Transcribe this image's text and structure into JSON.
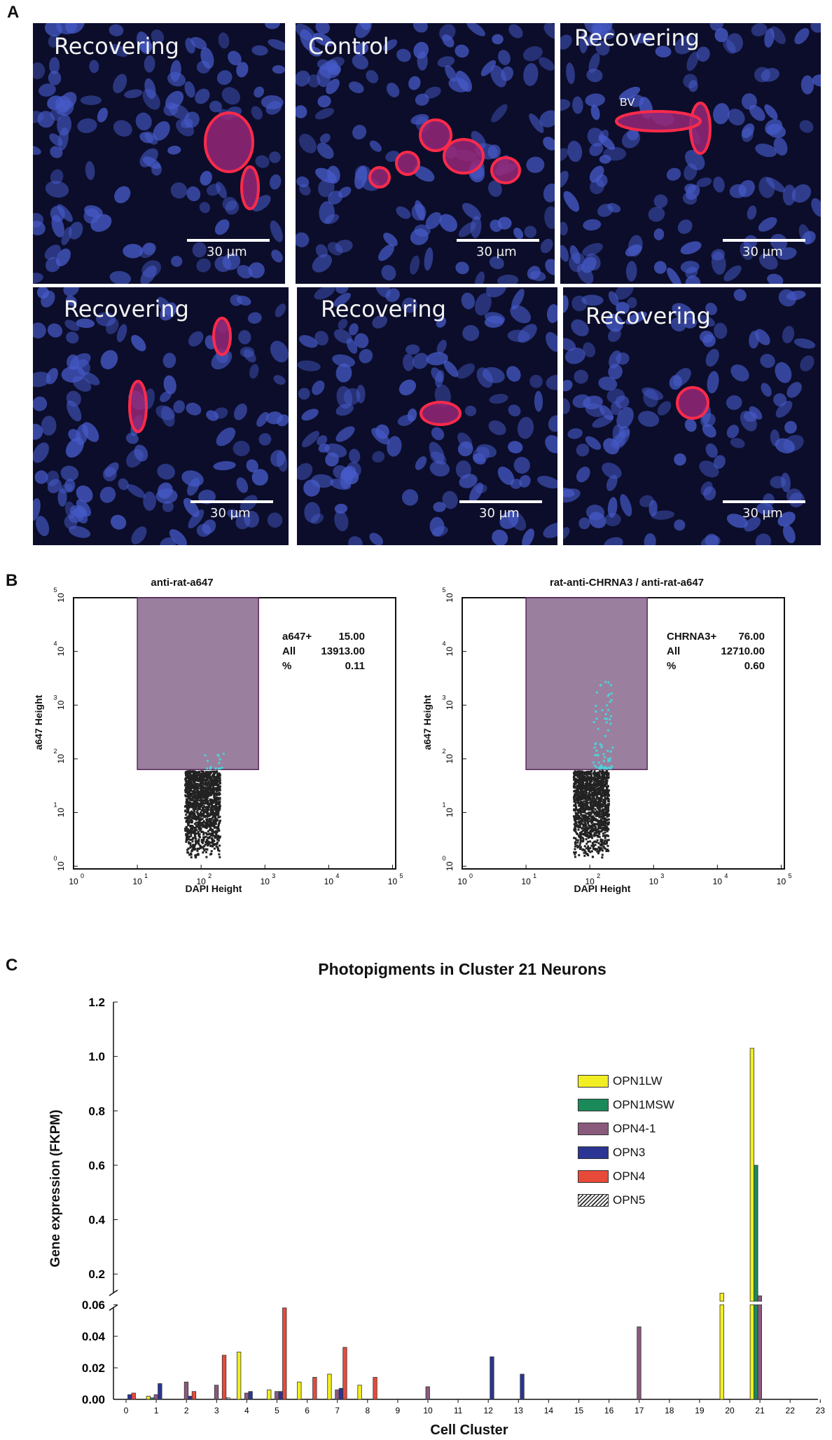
{
  "panels": {
    "a_label": "A",
    "b_label": "B",
    "c_label": "C"
  },
  "micrographs": [
    {
      "label": "Recovering",
      "scale": "30 µm",
      "annotation": ""
    },
    {
      "label": "Control",
      "scale": "30 µm",
      "annotation": ""
    },
    {
      "label": "Recovering",
      "scale": "30 µm",
      "annotation": "BV"
    },
    {
      "label": "Recovering",
      "scale": "30 µm",
      "annotation": ""
    },
    {
      "label": "Recovering",
      "scale": "30 µm",
      "annotation": ""
    },
    {
      "label": "Recovering",
      "scale": "30 µm",
      "annotation": ""
    }
  ],
  "facs": [
    {
      "title": "anti-rat-a647",
      "ylabel": "a647 Height",
      "xlabel": "DAPI Height",
      "stats": [
        {
          "k": "a647+",
          "v": "15.00"
        },
        {
          "k": "All",
          "v": "13913.00"
        },
        {
          "k": "%",
          "v": "0.11"
        }
      ],
      "positive_count": 15
    },
    {
      "title": "rat-anti-CHRNA3 / anti-rat-a647",
      "ylabel": "a647 Height",
      "xlabel": "DAPI Height",
      "stats": [
        {
          "k": "CHRNA3+",
          "v": "76.00"
        },
        {
          "k": "All",
          "v": "12710.00"
        },
        {
          "k": "%",
          "v": "0.60"
        }
      ],
      "positive_count": 76
    }
  ],
  "facs_ticks": {
    "base": "10",
    "exponents": [
      "0",
      "1",
      "2",
      "3",
      "4",
      "5"
    ]
  },
  "colors": {
    "OPN1LW": "#f2ee24",
    "OPN1MSW": "#1a8a5a",
    "OPN4-1": "#8a5a7d",
    "OPN3": "#2a3594",
    "OPN4": "#e84a3a",
    "OPN5": "#ffffff",
    "gate": "#9a7f9e",
    "positive": "#4fd0d8",
    "events": "#222222"
  },
  "chart_data": {
    "type": "bar",
    "title": "Photopigments in Cluster 21  Neurons",
    "xlabel": "Cell Cluster",
    "ylabel": "Gene expression (FKPM)",
    "categories": [
      "0",
      "1",
      "2",
      "3",
      "4",
      "5",
      "6",
      "7",
      "8",
      "9",
      "10",
      "11",
      "12",
      "13",
      "14",
      "15",
      "16",
      "17",
      "18",
      "19",
      "20",
      "21",
      "22",
      "23"
    ],
    "upper_ticks": [
      "0.2",
      "0.4",
      "0.6",
      "0.8",
      "1.0",
      "1.2"
    ],
    "lower_ticks": [
      "0.00",
      "0.02",
      "0.04",
      "0.06"
    ],
    "series": [
      {
        "name": "OPN1LW",
        "values": [
          0,
          0.002,
          0,
          0,
          0.03,
          0.006,
          0.011,
          0.016,
          0.009,
          0,
          0,
          0,
          0,
          0,
          0,
          0,
          0,
          0,
          0,
          0,
          0.13,
          1.03,
          0,
          0
        ]
      },
      {
        "name": "OPN1MSW",
        "values": [
          0,
          0.001,
          0,
          0,
          0,
          0,
          0,
          0,
          0,
          0,
          0,
          0,
          0,
          0,
          0,
          0,
          0,
          0,
          0,
          0,
          0,
          0.6,
          0,
          0
        ]
      },
      {
        "name": "OPN4-1",
        "values": [
          0,
          0.003,
          0.011,
          0.009,
          0.004,
          0.005,
          0,
          0.006,
          0,
          0,
          0.008,
          0,
          0,
          0,
          0,
          0,
          0,
          0.046,
          0,
          0,
          0,
          0.12,
          0,
          0
        ]
      },
      {
        "name": "OPN3",
        "values": [
          0.003,
          0.01,
          0.002,
          0,
          0.005,
          0.005,
          0,
          0.007,
          0,
          0,
          0,
          0,
          0.027,
          0.016,
          0,
          0,
          0,
          0,
          0,
          0,
          0,
          0,
          0,
          0
        ]
      },
      {
        "name": "OPN4",
        "values": [
          0.004,
          0,
          0.005,
          0.028,
          0,
          0.058,
          0.014,
          0.033,
          0.014,
          0,
          0,
          0,
          0,
          0,
          0,
          0,
          0,
          0,
          0,
          0,
          0,
          0,
          0,
          0
        ]
      },
      {
        "name": "OPN5",
        "values": [
          0,
          0,
          0,
          0.001,
          0,
          0,
          0,
          0,
          0,
          0,
          0,
          0,
          0,
          0,
          0,
          0,
          0,
          0,
          0,
          0,
          0,
          0,
          0,
          0
        ]
      }
    ]
  }
}
